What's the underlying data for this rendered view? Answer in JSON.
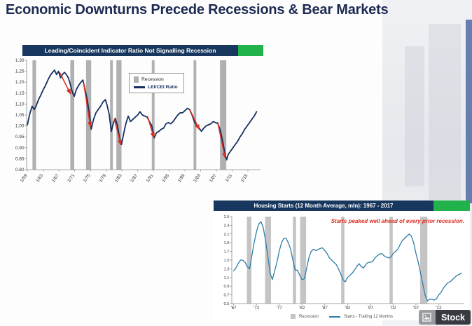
{
  "slide": {
    "title": "Economic Downturns Precede Recessions & Bear Markets",
    "watermark": "Stock"
  },
  "colors": {
    "title_text": "#1d2a52",
    "header_blue": "#17375e",
    "header_green": "#22b24c",
    "lei_line": "#16305f",
    "housing_line": "#2e7cab",
    "recession_gray": "#b0b0b0",
    "arrow_red": "#d93025"
  },
  "chart_data": [
    {
      "type": "line",
      "title": "Leading/Coincident Indicator Ratio Not Signalling Recession",
      "ylim": [
        0.8,
        1.3
      ],
      "ytick_step": 0.05,
      "ytick_labels": [
        "0.80",
        "0.85",
        "0.90",
        "0.95",
        "1.00",
        "1.05",
        "1.10",
        "1.15",
        "1.20",
        "1.25",
        "1.30"
      ],
      "xlim": [
        1958.8,
        2018.2
      ],
      "xticks": [
        1959,
        1963,
        1967,
        1971,
        1975,
        1979,
        1983,
        1987,
        1991,
        1995,
        1999,
        2003,
        2007,
        2011,
        2015
      ],
      "xtick_labels": [
        "1/59",
        "1/63",
        "1/67",
        "1/71",
        "1/75",
        "1/79",
        "1/83",
        "1/87",
        "1/91",
        "1/95",
        "1/99",
        "1/03",
        "1/07",
        "1/11",
        "1/15"
      ],
      "legend": [
        {
          "label": "Recession",
          "swatch": "recession"
        },
        {
          "label": "LEI/CEI Ratio",
          "swatch": "line"
        }
      ],
      "line_color": "#16305f",
      "recession_color": "#b0b0b0",
      "arrow_color": "#d93025",
      "legend_position": "top-center-inside",
      "grid": false,
      "recessions": [
        [
          1960.3,
          1961.2
        ],
        [
          1969.9,
          1970.9
        ],
        [
          1973.9,
          1975.2
        ],
        [
          1980.0,
          1980.7
        ],
        [
          1981.6,
          1982.9
        ],
        [
          1990.6,
          1991.3
        ],
        [
          2001.2,
          2001.9
        ],
        [
          2007.9,
          2009.5
        ]
      ],
      "arrows": [
        [
          [
            1967.2,
            1.245
          ],
          [
            1969.9,
            1.148
          ]
        ],
        [
          [
            1973.3,
            1.195
          ],
          [
            1975.0,
            0.998
          ]
        ],
        [
          [
            1981.1,
            1.032
          ],
          [
            1982.7,
            0.915
          ]
        ],
        [
          [
            1989.5,
            1.045
          ],
          [
            1991.1,
            0.948
          ]
        ],
        [
          [
            2000.3,
            1.072
          ],
          [
            2002.6,
            0.985
          ]
        ],
        [
          [
            2007.3,
            1.018
          ],
          [
            2009.2,
            0.856
          ]
        ]
      ],
      "series": [
        {
          "name": "LEI/CEI Ratio",
          "points": [
            [
              1959.0,
              1.005
            ],
            [
              1959.6,
              1.055
            ],
            [
              1960.2,
              1.09
            ],
            [
              1960.7,
              1.075
            ],
            [
              1961.2,
              1.09
            ],
            [
              1961.8,
              1.12
            ],
            [
              1962.4,
              1.14
            ],
            [
              1963.0,
              1.165
            ],
            [
              1963.6,
              1.185
            ],
            [
              1964.2,
              1.21
            ],
            [
              1964.8,
              1.23
            ],
            [
              1965.4,
              1.245
            ],
            [
              1965.9,
              1.255
            ],
            [
              1966.4,
              1.235
            ],
            [
              1966.9,
              1.25
            ],
            [
              1967.4,
              1.22
            ],
            [
              1967.9,
              1.235
            ],
            [
              1968.4,
              1.245
            ],
            [
              1968.9,
              1.235
            ],
            [
              1969.4,
              1.22
            ],
            [
              1969.9,
              1.19
            ],
            [
              1970.4,
              1.155
            ],
            [
              1970.9,
              1.135
            ],
            [
              1971.4,
              1.165
            ],
            [
              1972.0,
              1.185
            ],
            [
              1972.6,
              1.2
            ],
            [
              1973.1,
              1.21
            ],
            [
              1973.6,
              1.17
            ],
            [
              1974.2,
              1.12
            ],
            [
              1974.8,
              1.05
            ],
            [
              1975.2,
              0.985
            ],
            [
              1975.8,
              1.03
            ],
            [
              1976.4,
              1.06
            ],
            [
              1977.0,
              1.075
            ],
            [
              1977.6,
              1.09
            ],
            [
              1978.2,
              1.11
            ],
            [
              1978.8,
              1.12
            ],
            [
              1979.3,
              1.09
            ],
            [
              1979.8,
              1.05
            ],
            [
              1980.3,
              0.975
            ],
            [
              1980.8,
              1.01
            ],
            [
              1981.3,
              1.035
            ],
            [
              1981.9,
              1.0
            ],
            [
              1982.4,
              0.945
            ],
            [
              1982.9,
              0.915
            ],
            [
              1983.4,
              0.96
            ],
            [
              1984.0,
              1.01
            ],
            [
              1984.6,
              1.045
            ],
            [
              1985.2,
              1.02
            ],
            [
              1985.8,
              1.03
            ],
            [
              1986.4,
              1.04
            ],
            [
              1987.0,
              1.05
            ],
            [
              1987.6,
              1.065
            ],
            [
              1988.2,
              1.05
            ],
            [
              1988.8,
              1.045
            ],
            [
              1989.4,
              1.04
            ],
            [
              1990.0,
              1.02
            ],
            [
              1990.6,
              1.0
            ],
            [
              1991.2,
              0.945
            ],
            [
              1991.8,
              0.97
            ],
            [
              1992.4,
              0.975
            ],
            [
              1993.0,
              0.985
            ],
            [
              1993.6,
              0.99
            ],
            [
              1994.2,
              1.01
            ],
            [
              1994.8,
              1.015
            ],
            [
              1995.4,
              1.01
            ],
            [
              1996.0,
              1.02
            ],
            [
              1996.6,
              1.035
            ],
            [
              1997.2,
              1.05
            ],
            [
              1997.8,
              1.06
            ],
            [
              1998.4,
              1.06
            ],
            [
              1999.0,
              1.07
            ],
            [
              1999.6,
              1.08
            ],
            [
              2000.2,
              1.075
            ],
            [
              2000.8,
              1.05
            ],
            [
              2001.4,
              1.02
            ],
            [
              2002.0,
              1.0
            ],
            [
              2002.6,
              0.99
            ],
            [
              2003.2,
              0.975
            ],
            [
              2003.8,
              0.99
            ],
            [
              2004.4,
              1.0
            ],
            [
              2005.0,
              1.005
            ],
            [
              2005.6,
              1.01
            ],
            [
              2006.2,
              1.02
            ],
            [
              2006.8,
              1.015
            ],
            [
              2007.4,
              1.01
            ],
            [
              2008.0,
              0.98
            ],
            [
              2008.6,
              0.93
            ],
            [
              2009.2,
              0.87
            ],
            [
              2009.6,
              0.845
            ],
            [
              2010.0,
              0.87
            ],
            [
              2010.6,
              0.885
            ],
            [
              2011.2,
              0.9
            ],
            [
              2011.8,
              0.915
            ],
            [
              2012.4,
              0.93
            ],
            [
              2013.0,
              0.95
            ],
            [
              2013.6,
              0.965
            ],
            [
              2014.2,
              0.985
            ],
            [
              2014.8,
              1.0
            ],
            [
              2015.4,
              1.015
            ],
            [
              2016.0,
              1.03
            ],
            [
              2016.6,
              1.045
            ],
            [
              2017.2,
              1.065
            ]
          ]
        }
      ]
    },
    {
      "type": "line",
      "title": "Housing Starts (12 Month Average, mln): 1967 - 2017",
      "annotation": "Starts peaked well ahead of every prior recession.",
      "ylim": [
        0.5,
        2.5
      ],
      "ytick_step": 0.2,
      "ytick_labels": [
        "0.5",
        "0.7",
        "0.9",
        "1.1",
        "1.3",
        "1.5",
        "1.7",
        "1.9",
        "2.1",
        "2.3",
        "2.5"
      ],
      "xlim": [
        1966.6,
        2017.6
      ],
      "xticks": [
        1967,
        1972,
        1977,
        1982,
        1987,
        1992,
        1997,
        2002,
        2007,
        2012
      ],
      "xtick_labels": [
        "'67",
        "'72",
        "'77",
        "'82",
        "'87",
        "'92",
        "'97",
        "'02",
        "'07",
        "'12"
      ],
      "legend": [
        {
          "label": "Recession",
          "swatch": "recession"
        },
        {
          "label": "Starts - Trailing 12 Months",
          "swatch": "line"
        }
      ],
      "line_color": "#2e7cab",
      "recession_color": "#c4c4c4",
      "legend_position": "bottom-center",
      "grid": false,
      "recessions": [
        [
          1969.9,
          1970.9
        ],
        [
          1973.9,
          1975.2
        ],
        [
          1980.0,
          1980.7
        ],
        [
          1981.6,
          1982.9
        ],
        [
          1990.6,
          1991.3
        ],
        [
          2001.2,
          2001.9
        ],
        [
          2007.9,
          2009.5
        ]
      ],
      "series": [
        {
          "name": "Starts - Trailing 12 Months",
          "points": [
            [
              1967.0,
              1.25
            ],
            [
              1967.5,
              1.32
            ],
            [
              1968.0,
              1.42
            ],
            [
              1968.5,
              1.5
            ],
            [
              1969.0,
              1.5
            ],
            [
              1969.5,
              1.45
            ],
            [
              1970.0,
              1.35
            ],
            [
              1970.5,
              1.3
            ],
            [
              1971.0,
              1.6
            ],
            [
              1971.5,
              1.9
            ],
            [
              1972.0,
              2.15
            ],
            [
              1972.5,
              2.33
            ],
            [
              1973.0,
              2.38
            ],
            [
              1973.5,
              2.25
            ],
            [
              1974.0,
              1.95
            ],
            [
              1974.5,
              1.6
            ],
            [
              1975.0,
              1.2
            ],
            [
              1975.5,
              1.05
            ],
            [
              1976.0,
              1.25
            ],
            [
              1976.5,
              1.45
            ],
            [
              1977.0,
              1.7
            ],
            [
              1977.5,
              1.9
            ],
            [
              1978.0,
              2.0
            ],
            [
              1978.5,
              2.0
            ],
            [
              1979.0,
              1.9
            ],
            [
              1979.5,
              1.75
            ],
            [
              1980.0,
              1.5
            ],
            [
              1980.5,
              1.27
            ],
            [
              1981.0,
              1.27
            ],
            [
              1981.5,
              1.15
            ],
            [
              1982.0,
              1.05
            ],
            [
              1982.5,
              1.07
            ],
            [
              1983.0,
              1.3
            ],
            [
              1983.5,
              1.55
            ],
            [
              1984.0,
              1.7
            ],
            [
              1984.5,
              1.75
            ],
            [
              1985.0,
              1.72
            ],
            [
              1985.5,
              1.74
            ],
            [
              1986.0,
              1.77
            ],
            [
              1986.5,
              1.78
            ],
            [
              1987.0,
              1.72
            ],
            [
              1987.5,
              1.65
            ],
            [
              1988.0,
              1.55
            ],
            [
              1988.5,
              1.5
            ],
            [
              1989.0,
              1.45
            ],
            [
              1989.5,
              1.4
            ],
            [
              1990.0,
              1.3
            ],
            [
              1990.5,
              1.18
            ],
            [
              1991.0,
              1.05
            ],
            [
              1991.5,
              1.0
            ],
            [
              1992.0,
              1.1
            ],
            [
              1992.5,
              1.15
            ],
            [
              1993.0,
              1.2
            ],
            [
              1993.5,
              1.27
            ],
            [
              1994.0,
              1.35
            ],
            [
              1994.5,
              1.42
            ],
            [
              1995.0,
              1.35
            ],
            [
              1995.5,
              1.32
            ],
            [
              1996.0,
              1.4
            ],
            [
              1996.5,
              1.45
            ],
            [
              1997.0,
              1.45
            ],
            [
              1997.5,
              1.47
            ],
            [
              1998.0,
              1.55
            ],
            [
              1998.5,
              1.6
            ],
            [
              1999.0,
              1.64
            ],
            [
              1999.5,
              1.65
            ],
            [
              2000.0,
              1.6
            ],
            [
              2000.5,
              1.57
            ],
            [
              2001.0,
              1.55
            ],
            [
              2001.5,
              1.57
            ],
            [
              2002.0,
              1.65
            ],
            [
              2002.5,
              1.7
            ],
            [
              2003.0,
              1.75
            ],
            [
              2003.5,
              1.85
            ],
            [
              2004.0,
              1.95
            ],
            [
              2004.5,
              2.0
            ],
            [
              2005.0,
              2.05
            ],
            [
              2005.5,
              2.1
            ],
            [
              2006.0,
              2.05
            ],
            [
              2006.5,
              1.9
            ],
            [
              2007.0,
              1.65
            ],
            [
              2007.5,
              1.45
            ],
            [
              2008.0,
              1.2
            ],
            [
              2008.5,
              0.95
            ],
            [
              2009.0,
              0.7
            ],
            [
              2009.5,
              0.56
            ],
            [
              2010.0,
              0.6
            ],
            [
              2010.5,
              0.6
            ],
            [
              2011.0,
              0.58
            ],
            [
              2011.5,
              0.61
            ],
            [
              2012.0,
              0.7
            ],
            [
              2012.5,
              0.76
            ],
            [
              2013.0,
              0.85
            ],
            [
              2013.5,
              0.92
            ],
            [
              2014.0,
              0.98
            ],
            [
              2014.5,
              1.0
            ],
            [
              2015.0,
              1.05
            ],
            [
              2015.5,
              1.1
            ],
            [
              2016.0,
              1.15
            ],
            [
              2016.5,
              1.17
            ],
            [
              2017.0,
              1.2
            ]
          ]
        }
      ]
    }
  ]
}
